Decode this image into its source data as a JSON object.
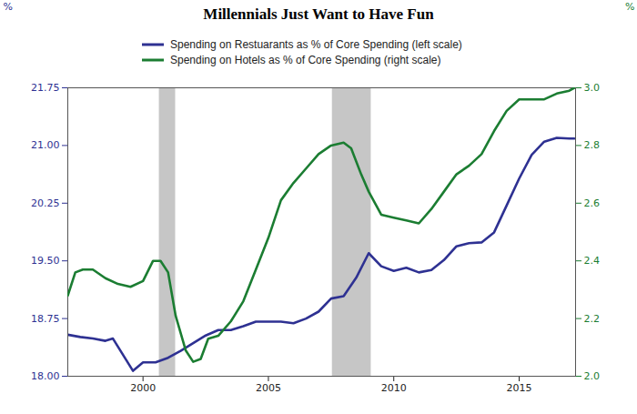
{
  "chart_data": {
    "type": "line",
    "title": "Millennials Just Want to Have Fun",
    "ylabel": "%",
    "y2label": "%",
    "xlim": [
      1997.0,
      2017.25
    ],
    "xticks": [
      2000,
      2005,
      2010,
      2015
    ],
    "ylim": [
      18.0,
      21.75
    ],
    "yticks": [
      {
        "value": 18.0,
        "label": "18.00"
      },
      {
        "value": 18.75,
        "label": "18.75"
      },
      {
        "value": 19.5,
        "label": "19.50"
      },
      {
        "value": 20.25,
        "label": "20.25"
      },
      {
        "value": 21.0,
        "label": "21.00"
      },
      {
        "value": 21.75,
        "label": "21.75"
      }
    ],
    "y2lim": [
      2.0,
      3.0
    ],
    "y2ticks": [
      {
        "value": 2.0,
        "label": "2.0"
      },
      {
        "value": 2.2,
        "label": "2.2"
      },
      {
        "value": 2.4,
        "label": "2.4"
      },
      {
        "value": 2.6,
        "label": "2.6"
      },
      {
        "value": 2.8,
        "label": "2.8"
      },
      {
        "value": 3.0,
        "label": "3.0"
      }
    ],
    "recessions": [
      [
        2000.65,
        2001.3
      ],
      [
        2007.55,
        2009.1
      ]
    ],
    "grid": false,
    "series": [
      {
        "name": "Spending on Restuarants as % of Core Spending (left scale)",
        "color": "#2e3192",
        "axis": "y",
        "x": [
          1997.0,
          1997.5,
          1998.0,
          1998.5,
          1998.8,
          1999.6,
          2000.0,
          2000.5,
          2001.0,
          2001.5,
          2002.0,
          2002.5,
          2003.0,
          2003.5,
          2004.0,
          2004.5,
          2005.0,
          2005.5,
          2006.0,
          2006.5,
          2007.0,
          2007.5,
          2008.0,
          2008.5,
          2009.0,
          2009.5,
          2010.0,
          2010.5,
          2011.0,
          2011.5,
          2012.0,
          2012.5,
          2013.0,
          2013.5,
          2014.0,
          2014.5,
          2015.0,
          2015.5,
          2016.0,
          2016.5,
          2017.0,
          2017.2
        ],
        "values": [
          18.54,
          18.51,
          18.49,
          18.46,
          18.49,
          18.07,
          18.18,
          18.18,
          18.24,
          18.33,
          18.43,
          18.53,
          18.6,
          18.6,
          18.65,
          18.71,
          18.71,
          18.71,
          18.69,
          18.75,
          18.84,
          19.01,
          19.04,
          19.28,
          19.6,
          19.43,
          19.37,
          19.41,
          19.35,
          19.38,
          19.51,
          19.69,
          19.73,
          19.74,
          19.87,
          20.22,
          20.57,
          20.88,
          21.05,
          21.1,
          21.09,
          21.09
        ]
      },
      {
        "name": "Spending on Hotels as % of Core Spending (right scale)",
        "color": "#1b7d32",
        "axis": "y2",
        "x": [
          1997.0,
          1997.3,
          1997.6,
          1998.0,
          1998.5,
          1999.0,
          1999.5,
          2000.0,
          2000.4,
          2000.7,
          2001.0,
          2001.3,
          2001.7,
          2002.0,
          2002.3,
          2002.6,
          2003.0,
          2003.5,
          2004.0,
          2004.5,
          2005.0,
          2005.5,
          2006.0,
          2006.5,
          2007.0,
          2007.5,
          2008.0,
          2008.3,
          2008.7,
          2009.0,
          2009.5,
          2010.0,
          2010.5,
          2011.0,
          2011.5,
          2012.0,
          2012.5,
          2013.0,
          2013.5,
          2014.0,
          2014.5,
          2015.0,
          2015.5,
          2016.0,
          2016.5,
          2017.0,
          2017.2
        ],
        "values": [
          2.28,
          2.36,
          2.37,
          2.37,
          2.34,
          2.32,
          2.31,
          2.33,
          2.4,
          2.4,
          2.36,
          2.21,
          2.09,
          2.05,
          2.06,
          2.13,
          2.14,
          2.19,
          2.26,
          2.37,
          2.48,
          2.61,
          2.67,
          2.72,
          2.77,
          2.8,
          2.81,
          2.79,
          2.7,
          2.64,
          2.56,
          2.55,
          2.54,
          2.53,
          2.58,
          2.64,
          2.7,
          2.73,
          2.77,
          2.85,
          2.92,
          2.96,
          2.96,
          2.96,
          2.98,
          2.99,
          3.0
        ]
      }
    ]
  }
}
